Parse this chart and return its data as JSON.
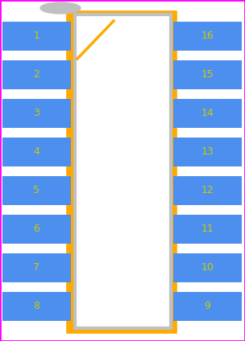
{
  "bg_color": "#ffffff",
  "border_color": "#ff00ff",
  "body_fill": "#ffffff",
  "body_stroke": "#c0c0c0",
  "pad_fill": "#4d8fef",
  "outline_color": "#ffaa00",
  "pin_text_color": "#cccc00",
  "notch_color": "#ffaa00",
  "pin1_marker_color": "#c0c0c0",
  "n_pins_per_side": 8,
  "fig_width": 3.04,
  "fig_height": 4.24,
  "dpi": 100,
  "left_pins": [
    1,
    2,
    3,
    4,
    5,
    6,
    7,
    8
  ],
  "right_pins": [
    16,
    15,
    14,
    13,
    12,
    11,
    10,
    9
  ],
  "font_size": 9
}
